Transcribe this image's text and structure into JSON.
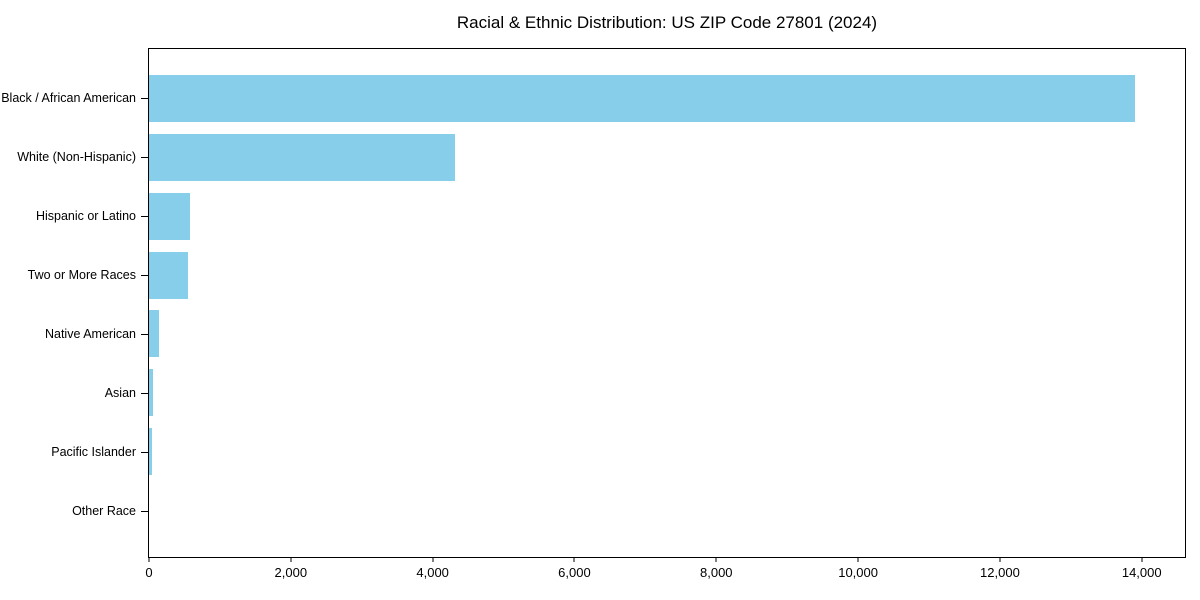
{
  "chart_data": {
    "type": "bar",
    "orientation": "horizontal",
    "title": "Racial & Ethnic Distribution: US ZIP Code 27801 (2024)",
    "categories": [
      "Black / African American",
      "White (Non-Hispanic)",
      "Hispanic or Latino",
      "Two or More Races",
      "Native American",
      "Asian",
      "Pacific Islander",
      "Other Race"
    ],
    "values": [
      13900,
      4320,
      580,
      550,
      140,
      52,
      38,
      0
    ],
    "xlabel": "",
    "ylabel": "",
    "xlim": [
      0,
      14610
    ],
    "xticks": [
      {
        "value": 0,
        "label": "0"
      },
      {
        "value": 2000,
        "label": "2,000"
      },
      {
        "value": 4000,
        "label": "4,000"
      },
      {
        "value": 6000,
        "label": "6,000"
      },
      {
        "value": 8000,
        "label": "8,000"
      },
      {
        "value": 10000,
        "label": "10,000"
      },
      {
        "value": 12000,
        "label": "12,000"
      },
      {
        "value": 14000,
        "label": "14,000"
      }
    ],
    "grid": false,
    "legend": "none",
    "colors": {
      "bar": "#87CEEB",
      "axis": "#000000",
      "text": "#000000",
      "background": "#FFFFFF"
    }
  }
}
